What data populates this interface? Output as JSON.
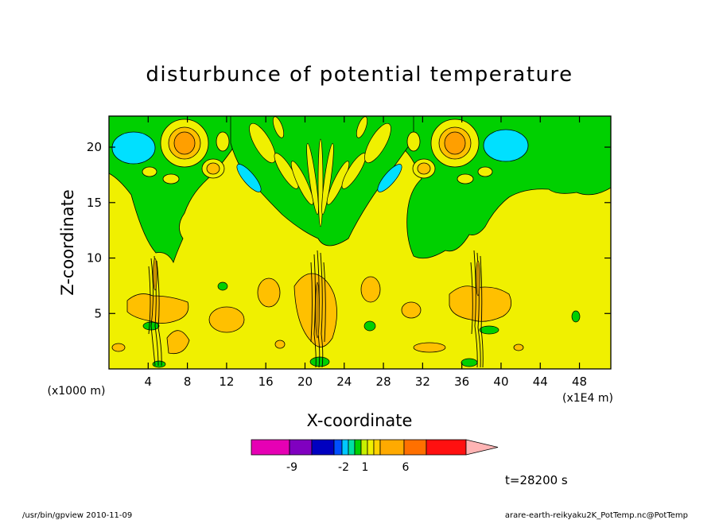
{
  "chart_data": {
    "type": "heatmap",
    "title": "disturbunce of potential temperature",
    "xlabel": "X-coordinate",
    "ylabel": "Z-coordinate",
    "x_unit_left": "(x1000 m)",
    "x_unit_right": "(x1E4 m)",
    "xlim": [
      0,
      51.2
    ],
    "ylim": [
      0,
      22.8
    ],
    "x_ticks": [
      "4",
      "8",
      "12",
      "16",
      "20",
      "24",
      "28",
      "32",
      "36",
      "40",
      "44",
      "48"
    ],
    "y_ticks": [
      "5",
      "10",
      "15",
      "20"
    ],
    "colorbar": {
      "tick_labels": [
        "-9",
        "-2",
        "1",
        "6"
      ],
      "colors": [
        "#e600b4",
        "#8000c0",
        "#0000c0",
        "#0050ff",
        "#00c8ff",
        "#00e0a0",
        "#00d000",
        "#c8f000",
        "#f0f000",
        "#ffd200",
        "#ffaa00",
        "#ff7000",
        "#ff1010",
        "#ff7878",
        "#ffb4b4"
      ]
    },
    "background_color": "#f0f000",
    "features": [
      {
        "name": "upper-band-left",
        "color": "#00d000"
      },
      {
        "name": "upper-band-right",
        "color": "#00d000"
      },
      {
        "name": "v-plume",
        "color": "#00d000"
      },
      {
        "name": "cyan-blob-left",
        "color": "#00e0ff"
      },
      {
        "name": "cyan-blob-right",
        "color": "#00e0ff"
      },
      {
        "name": "orange-core-left",
        "color": "#ff9f00"
      },
      {
        "name": "orange-core-right",
        "color": "#ff9f00"
      },
      {
        "name": "convective-column-x5",
        "color": "#ffc000"
      },
      {
        "name": "convective-column-x21",
        "color": "#ffc000"
      },
      {
        "name": "convective-column-x38",
        "color": "#ffc000"
      }
    ]
  },
  "annotations": {
    "time": "t=28200 s",
    "footer_left": "/usr/bin/gpview   2010-11-09",
    "footer_right": "arare-earth-reikyaku2K_PotTemp.nc@PotTemp"
  }
}
